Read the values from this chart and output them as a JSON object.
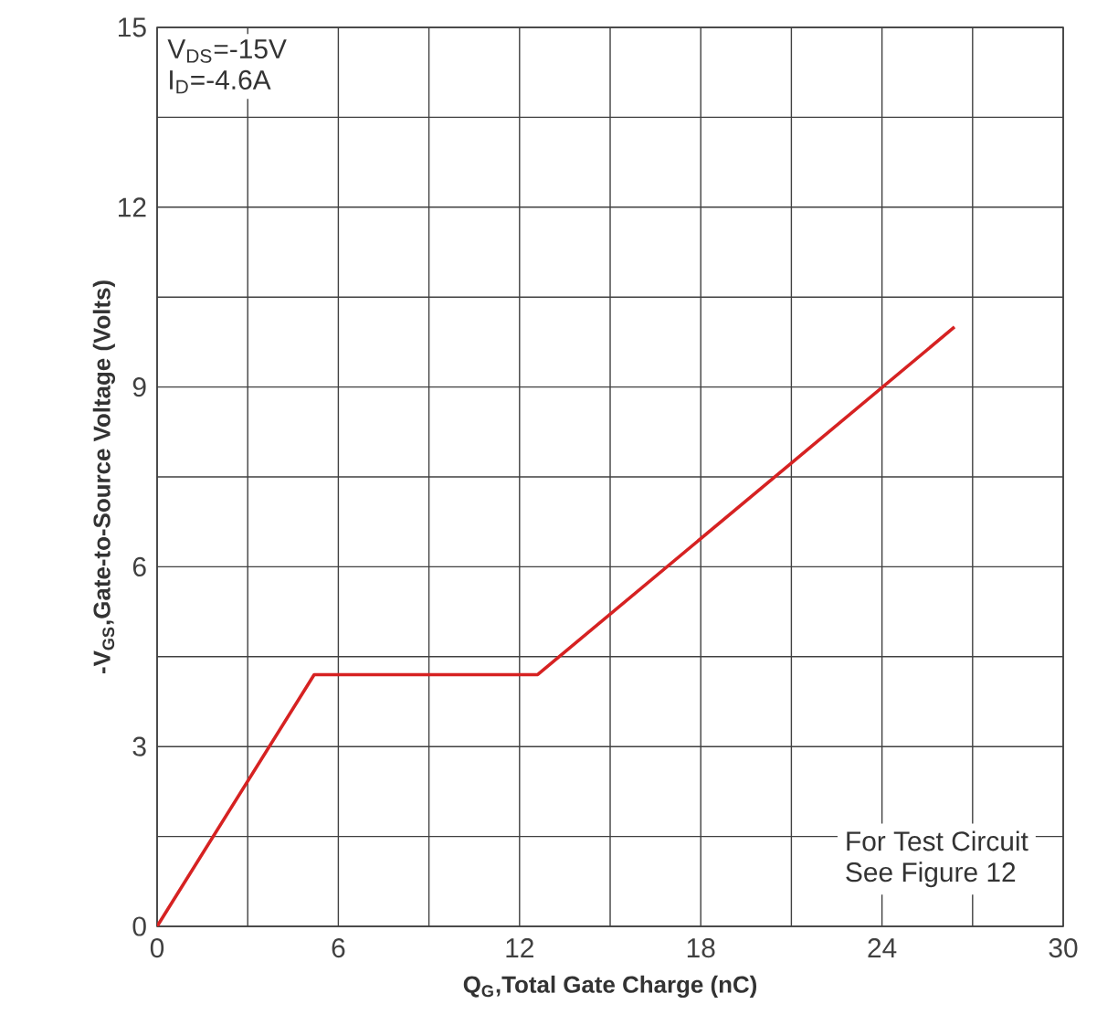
{
  "chart_data": {
    "type": "line",
    "xlabel": "Q$_{G}$,Total Gate Charge (nC)",
    "ylabel": "-V$_{GS}$,Gate-to-Source Voltage (Volts)",
    "annotations": [
      "V$_{DS}$=-15V",
      "I$_{D}$=-4.6A",
      "For Test Circuit",
      "See Figure 12"
    ],
    "xlim": [
      0,
      30
    ],
    "ylim": [
      0,
      15
    ],
    "xticks": [
      0,
      {
        "value": 3,
        "label": null
      },
      6,
      {
        "value": 9,
        "label": null
      },
      12,
      {
        "value": 15,
        "label": null
      },
      18,
      {
        "value": 21,
        "label": null
      },
      24,
      {
        "value": 27,
        "label": null
      },
      30
    ],
    "yticks": [
      0,
      {
        "value": 1.5,
        "label": null
      },
      3,
      {
        "value": 4.5,
        "label": null
      },
      6,
      {
        "value": 7.5,
        "label": null
      },
      9,
      {
        "value": 10.5,
        "label": null
      },
      12,
      {
        "value": 13.5,
        "label": null
      },
      15
    ],
    "grid": true,
    "series": [
      {
        "color": "#d62222",
        "x": [
          0,
          5.2,
          12.6,
          26.4
        ],
        "values": [
          0,
          4.2,
          4.2,
          10.0
        ]
      }
    ]
  }
}
